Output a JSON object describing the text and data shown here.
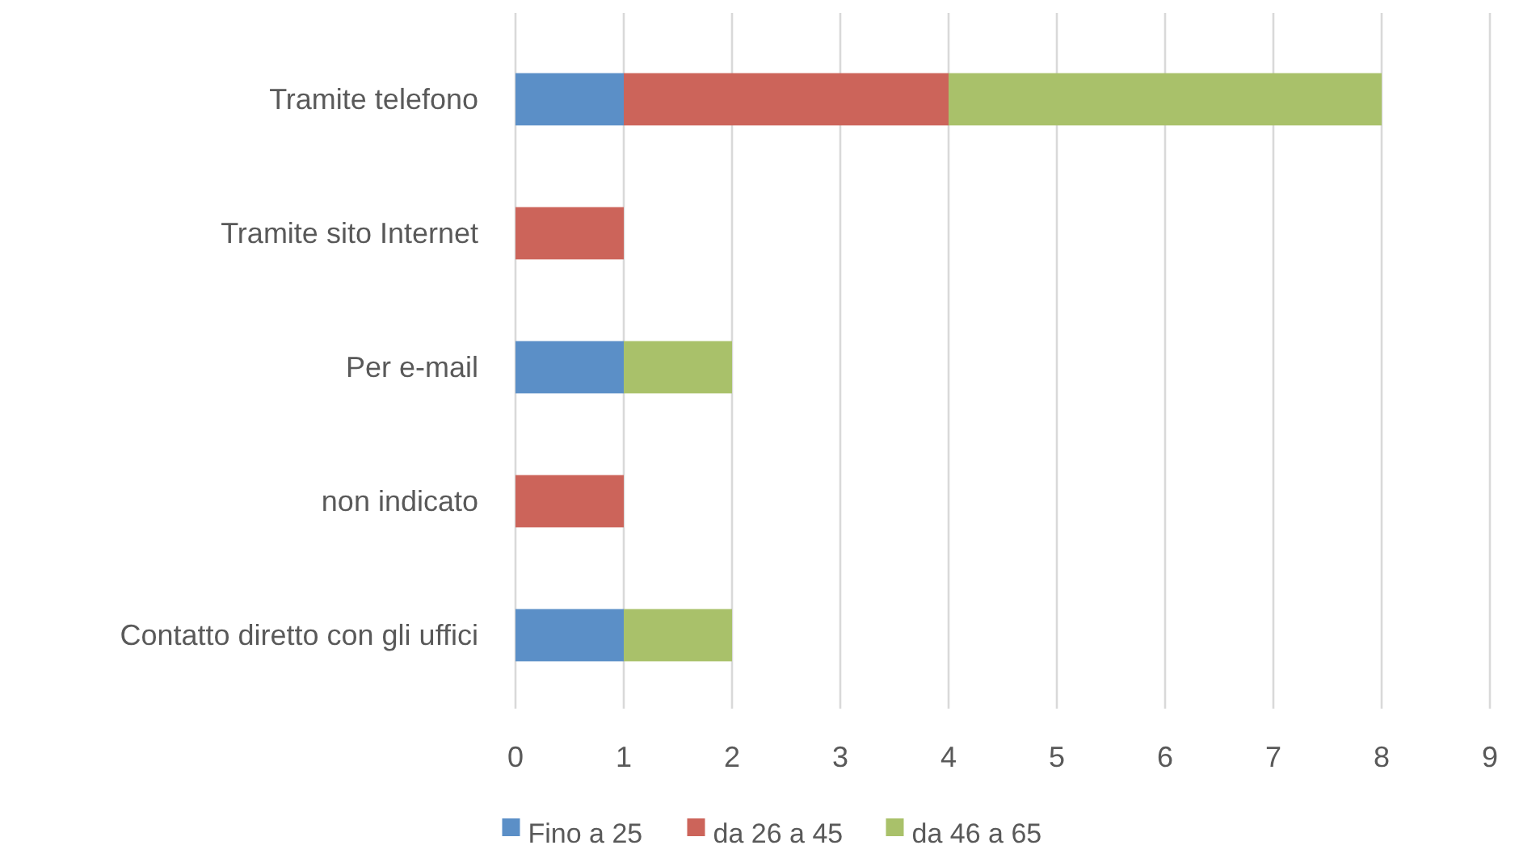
{
  "chart_data": {
    "type": "bar",
    "orientation": "horizontal",
    "stacked": true,
    "categories": [
      "Tramite telefono",
      "Tramite sito Internet",
      "Per e-mail",
      "non indicato",
      "Contatto diretto con gli uffici"
    ],
    "series": [
      {
        "name": "Fino a 25",
        "color": "#5b8fc7",
        "values": [
          1,
          null,
          1,
          null,
          1
        ]
      },
      {
        "name": "da 26 a 45",
        "color": "#cc645a",
        "values": [
          3,
          1,
          null,
          1,
          null
        ]
      },
      {
        "name": "da 46 a 65",
        "color": "#a9c16a",
        "values": [
          4,
          null,
          1,
          null,
          1
        ]
      }
    ],
    "xlim": [
      0,
      9
    ],
    "xticks": [
      0,
      1,
      2,
      3,
      4,
      5,
      6,
      7,
      8,
      9
    ],
    "grid": "x",
    "legend": "bottom"
  }
}
